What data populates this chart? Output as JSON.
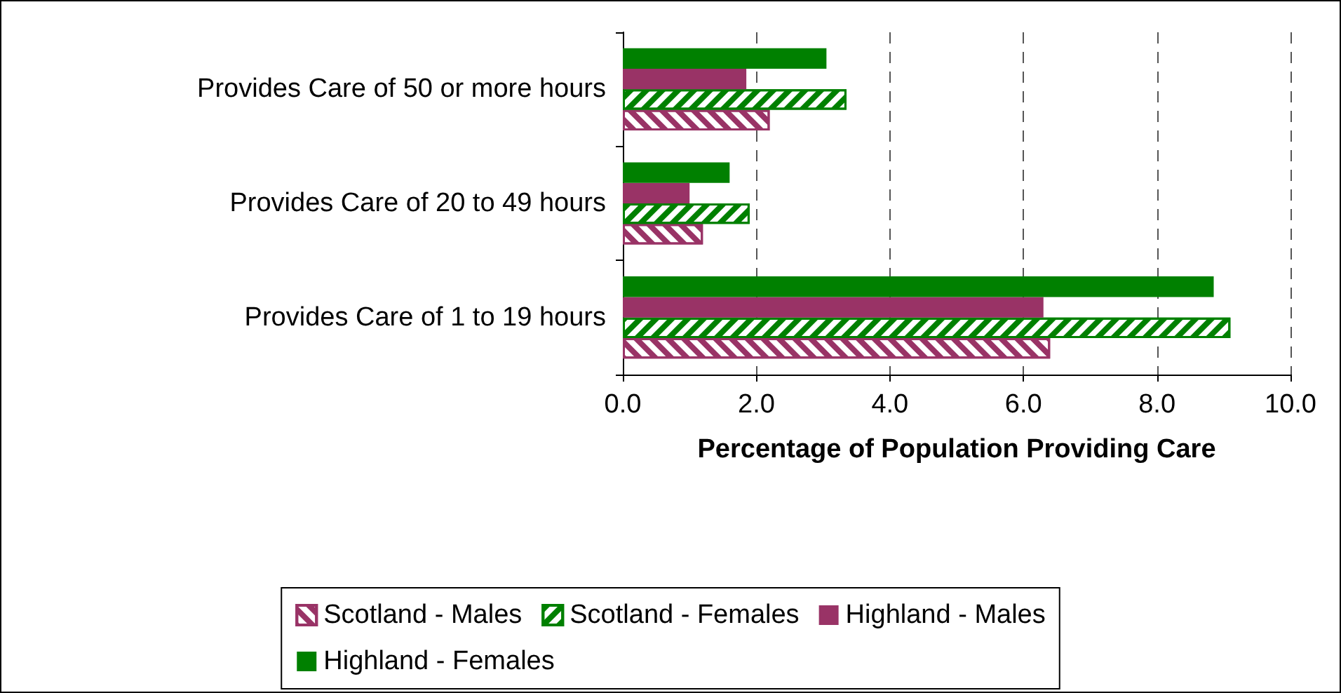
{
  "chart_data": {
    "type": "bar",
    "orientation": "horizontal",
    "xlabel": "Percentage of Population Providing Care",
    "categories": [
      "Provides Care of 50 or more hours",
      "Provides Care of 20 to 49 hours",
      "Provides Care of 1 to 19 hours"
    ],
    "series": [
      {
        "name": "Scotland - Males",
        "color": "#993366",
        "values": [
          2.2,
          1.2,
          6.4
        ]
      },
      {
        "name": "Scotland - Females",
        "color": "#008000",
        "values": [
          3.35,
          1.9,
          9.1
        ]
      },
      {
        "name": "Highland - Males",
        "color": "#993366",
        "values": [
          1.85,
          1.0,
          6.3
        ]
      },
      {
        "name": "Highland - Females",
        "color": "#008000",
        "values": [
          3.05,
          1.6,
          8.85
        ]
      }
    ],
    "xlim": [
      0,
      10
    ],
    "xticks": [
      {
        "value": 0,
        "label": "0.0"
      },
      {
        "value": 2,
        "label": "2.0"
      },
      {
        "value": 4,
        "label": "4.0"
      },
      {
        "value": 6,
        "label": "6.0"
      },
      {
        "value": 8,
        "label": "8.0"
      },
      {
        "value": 10,
        "label": "10.0"
      }
    ],
    "grid": "x",
    "legend": "bottom"
  }
}
